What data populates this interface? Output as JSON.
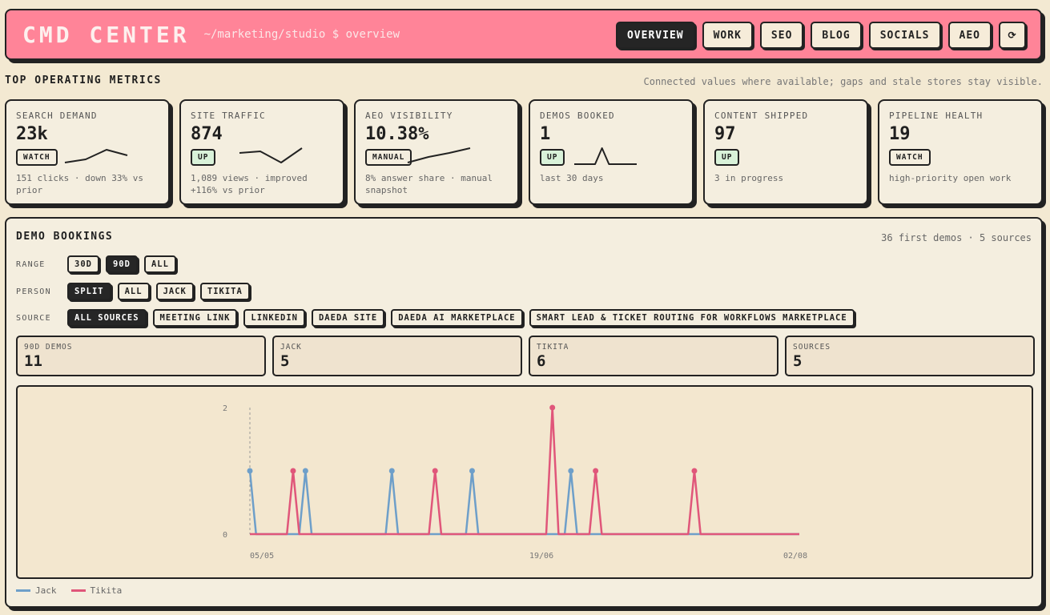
{
  "header": {
    "brand": "CMD CENTER",
    "path": "~/marketing/studio $ overview",
    "nav": [
      "OVERVIEW",
      "WORK",
      "SEO",
      "BLOG",
      "SOCIALS",
      "AEO"
    ],
    "active_nav": "OVERVIEW",
    "refresh_icon": "⟳"
  },
  "metrics": {
    "title": "TOP OPERATING METRICS",
    "note": "Connected values where available; gaps and stale stores stay visible.",
    "cards": [
      {
        "label": "SEARCH DEMAND",
        "value": "23k",
        "badge": "WATCH",
        "sub": "151 clicks · down 33% vs prior",
        "spark": [
          0.1,
          0.3,
          0.9,
          0.55
        ]
      },
      {
        "label": "SITE TRAFFIC",
        "value": "874",
        "badge": "UP",
        "sub": "1,089 views · improved +116% vs prior",
        "spark": [
          0.7,
          0.8,
          0.1,
          1.0
        ]
      },
      {
        "label": "AEO VISIBILITY",
        "value": "10.38%",
        "badge": "MANUAL",
        "sub": "8% answer share · manual snapshot",
        "spark": [
          0.1,
          0.45,
          0.7,
          1.0
        ]
      },
      {
        "label": "DEMOS BOOKED",
        "value": "1",
        "badge": "UP",
        "sub": "last 30 days",
        "spark": [
          0,
          0,
          0,
          0,
          1,
          0,
          0,
          0,
          0,
          0
        ]
      },
      {
        "label": "CONTENT SHIPPED",
        "value": "97",
        "badge": "UP",
        "sub": "3 in progress"
      },
      {
        "label": "PIPELINE HEALTH",
        "value": "19",
        "badge": "WATCH",
        "sub": "high-priority open work"
      }
    ]
  },
  "demo": {
    "title": "DEMO BOOKINGS",
    "note": "36 first demos · 5 sources",
    "filters": {
      "range": {
        "label": "RANGE",
        "options": [
          "30D",
          "90D",
          "ALL"
        ],
        "active": "90D"
      },
      "person": {
        "label": "PERSON",
        "options": [
          "SPLIT",
          "ALL",
          "JACK",
          "TIKITA"
        ],
        "active": "SPLIT"
      },
      "source": {
        "label": "SOURCE",
        "options": [
          "ALL SOURCES",
          "MEETING LINK",
          "LINKEDIN",
          "DAEDA SITE",
          "DAEDA AI MARKETPLACE",
          "SMART LEAD & TICKET ROUTING FOR WORKFLOWS MARKETPLACE"
        ],
        "active": "ALL SOURCES"
      }
    },
    "stats": [
      {
        "label": "90D DEMOS",
        "value": "11"
      },
      {
        "label": "JACK",
        "value": "5"
      },
      {
        "label": "TIKITA",
        "value": "6"
      },
      {
        "label": "SOURCES",
        "value": "5"
      }
    ]
  },
  "chart_data": {
    "type": "line",
    "x_ticks": [
      "05/05",
      "19/06",
      "02/08"
    ],
    "y_ticks": [
      0,
      2
    ],
    "ylim": [
      0,
      2
    ],
    "x_range": [
      0,
      89
    ],
    "series": [
      {
        "name": "Jack",
        "color": "#6e9fc9",
        "days": [
          0,
          9,
          23,
          36,
          52
        ],
        "values": [
          1,
          1,
          1,
          1,
          1
        ]
      },
      {
        "name": "Tikita",
        "color": "#e0567a",
        "days": [
          7,
          30,
          49,
          56,
          72
        ],
        "values": [
          1,
          1,
          2,
          1,
          1
        ]
      }
    ],
    "grid": false,
    "legend": "bottom-left"
  }
}
